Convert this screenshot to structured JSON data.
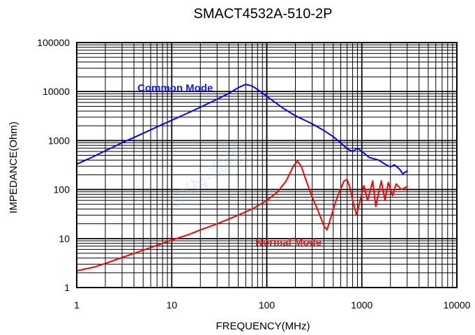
{
  "chart_data": {
    "type": "line",
    "title": "SMACT4532A-510-2P",
    "xlabel": "FREQUENCY(MHz)",
    "ylabel": "IMPEDANCE(Ohm)",
    "x_scale": "log",
    "y_scale": "log",
    "xlim": [
      1,
      10000
    ],
    "ylim": [
      1,
      100000
    ],
    "x_ticks": [
      "1",
      "10",
      "100",
      "1000",
      "10000"
    ],
    "y_ticks": [
      "1",
      "10",
      "100",
      "1000",
      "10000",
      "100000"
    ],
    "grid": true,
    "watermark": "SXN-顺络",
    "series": [
      {
        "name": "Common Mode",
        "color": "#0000ff",
        "points": [
          [
            1,
            330
          ],
          [
            1.5,
            470
          ],
          [
            2,
            620
          ],
          [
            3,
            900
          ],
          [
            5,
            1400
          ],
          [
            7,
            1900
          ],
          [
            10,
            2600
          ],
          [
            15,
            3700
          ],
          [
            20,
            4800
          ],
          [
            30,
            7000
          ],
          [
            40,
            9200
          ],
          [
            50,
            12000
          ],
          [
            60,
            14000
          ],
          [
            70,
            13000
          ],
          [
            80,
            11000
          ],
          [
            100,
            8000
          ],
          [
            150,
            4500
          ],
          [
            200,
            3200
          ],
          [
            300,
            2200
          ],
          [
            400,
            1600
          ],
          [
            500,
            1200
          ],
          [
            600,
            900
          ],
          [
            700,
            680
          ],
          [
            800,
            600
          ],
          [
            900,
            700
          ],
          [
            1000,
            600
          ],
          [
            1200,
            450
          ],
          [
            1500,
            400
          ],
          [
            1800,
            320
          ],
          [
            2000,
            290
          ],
          [
            2200,
            320
          ],
          [
            2500,
            260
          ],
          [
            2700,
            210
          ],
          [
            3000,
            240
          ]
        ]
      },
      {
        "name": "Normal Mode",
        "color": "#ff0000",
        "points": [
          [
            1,
            2.2
          ],
          [
            1.5,
            2.6
          ],
          [
            2,
            3.1
          ],
          [
            3,
            4.1
          ],
          [
            5,
            5.8
          ],
          [
            7,
            7.3
          ],
          [
            10,
            9.3
          ],
          [
            15,
            12
          ],
          [
            20,
            15
          ],
          [
            30,
            20
          ],
          [
            50,
            30
          ],
          [
            70,
            40
          ],
          [
            100,
            60
          ],
          [
            130,
            90
          ],
          [
            160,
            150
          ],
          [
            190,
            300
          ],
          [
            210,
            380
          ],
          [
            230,
            300
          ],
          [
            260,
            150
          ],
          [
            300,
            70
          ],
          [
            350,
            35
          ],
          [
            400,
            18
          ],
          [
            430,
            15
          ],
          [
            480,
            30
          ],
          [
            550,
            70
          ],
          [
            650,
            150
          ],
          [
            700,
            160
          ],
          [
            750,
            110
          ],
          [
            820,
            50
          ],
          [
            880,
            30
          ],
          [
            950,
            55
          ],
          [
            1050,
            120
          ],
          [
            1150,
            60
          ],
          [
            1300,
            150
          ],
          [
            1400,
            45
          ],
          [
            1600,
            150
          ],
          [
            1750,
            60
          ],
          [
            1900,
            140
          ],
          [
            2100,
            75
          ],
          [
            2300,
            130
          ],
          [
            2600,
            100
          ],
          [
            3000,
            115
          ]
        ]
      }
    ]
  }
}
